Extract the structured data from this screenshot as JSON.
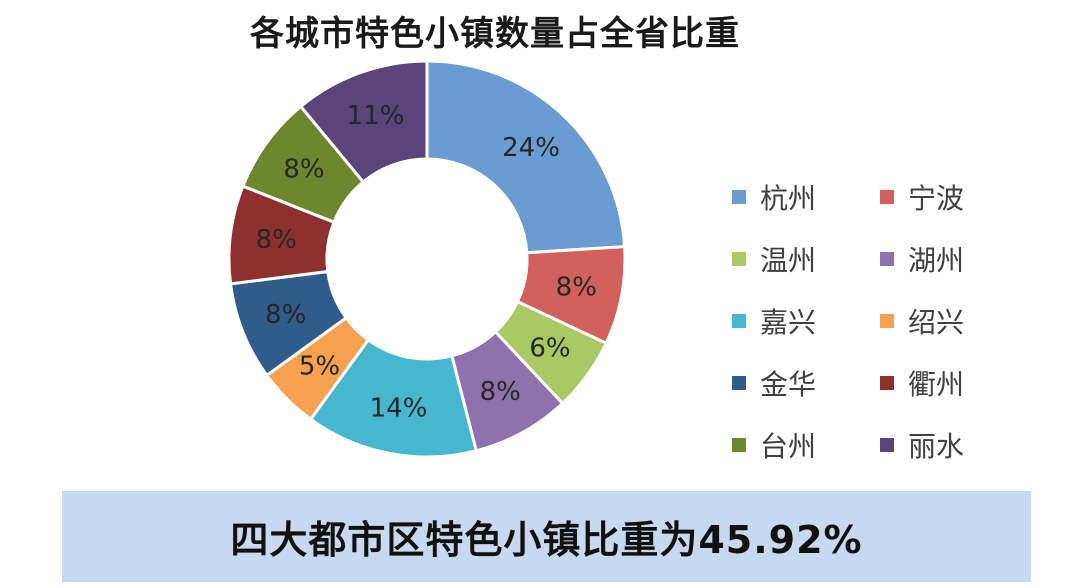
{
  "chart_data": {
    "type": "pie",
    "subtype": "donut",
    "title": "各城市特色小镇数量占全省比重",
    "legend_position": "right",
    "slices": [
      {
        "name": "杭州",
        "value": 24,
        "label": "24%",
        "color": "#6a9bd1"
      },
      {
        "name": "宁波",
        "value": 8,
        "label": "8%",
        "color": "#d2605c"
      },
      {
        "name": "温州",
        "value": 6,
        "label": "6%",
        "color": "#a8c964"
      },
      {
        "name": "湖州",
        "value": 8,
        "label": "8%",
        "color": "#8e71ad"
      },
      {
        "name": "嘉兴",
        "value": 14,
        "label": "14%",
        "color": "#47b7cf"
      },
      {
        "name": "绍兴",
        "value": 5,
        "label": "5%",
        "color": "#f6a14f"
      },
      {
        "name": "金华",
        "value": 8,
        "label": "8%",
        "color": "#2f5c8a"
      },
      {
        "name": "衢州",
        "value": 8,
        "label": "8%",
        "color": "#8e302e"
      },
      {
        "name": "台州",
        "value": 8,
        "label": "8%",
        "color": "#6e862e"
      },
      {
        "name": "丽水",
        "value": 11,
        "label": "11%",
        "color": "#5a4479"
      }
    ]
  },
  "banner": {
    "text": "四大都市区特色小镇比重为45.92%",
    "background": "#c6d9f1"
  }
}
